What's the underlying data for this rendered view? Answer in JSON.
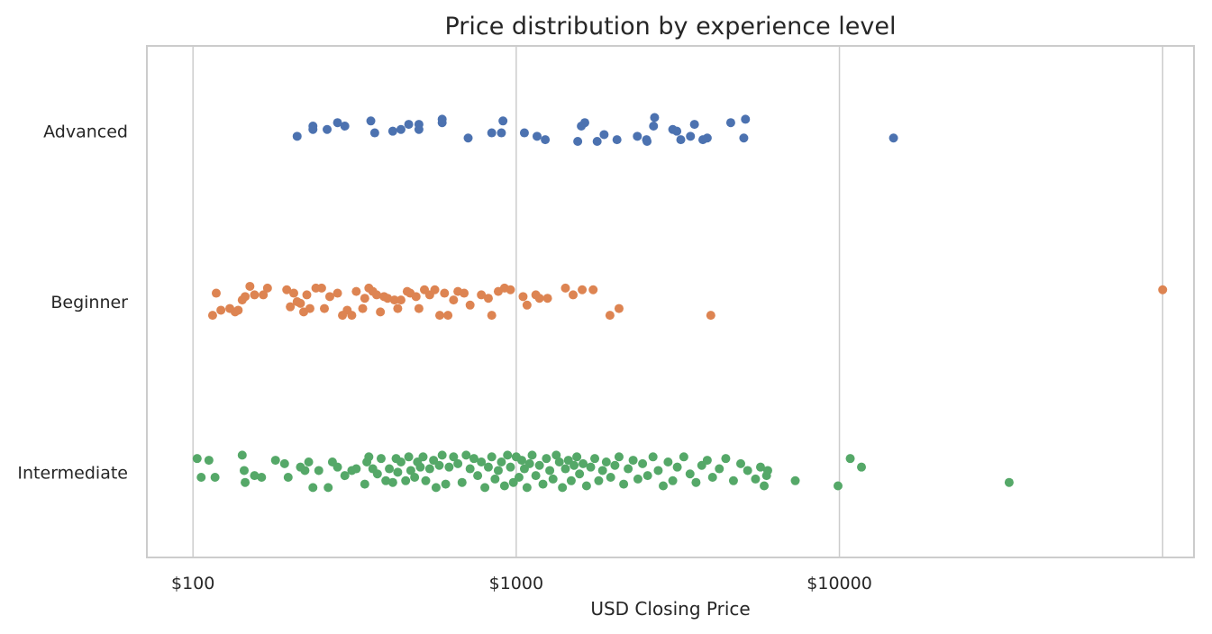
{
  "chart_data": {
    "type": "scatter",
    "title": "Price distribution by experience level",
    "xlabel": "USD Closing Price",
    "ylabel": "",
    "x_scale": "log",
    "xlim": [
      72,
      125000
    ],
    "x_ticks": [
      {
        "value": 100,
        "label": "$100"
      },
      {
        "value": 1000,
        "label": "$1000"
      },
      {
        "value": 10000,
        "label": "$10000"
      }
    ],
    "x_gridlines": [
      100,
      1000,
      10000,
      100000
    ],
    "categories": [
      "Advanced",
      "Beginner",
      "Intermediate"
    ],
    "grid": true,
    "legend": false,
    "series": [
      {
        "category": "Advanced",
        "color": "#4c72b0",
        "points": [
          [
            210,
            -0.03
          ],
          [
            235,
            0.03
          ],
          [
            235,
            0.01
          ],
          [
            260,
            0.01
          ],
          [
            280,
            0.05
          ],
          [
            295,
            0.03
          ],
          [
            355,
            0.06
          ],
          [
            365,
            -0.01
          ],
          [
            415,
            0
          ],
          [
            440,
            0.01
          ],
          [
            465,
            0.04
          ],
          [
            500,
            0.04
          ],
          [
            500,
            0.01
          ],
          [
            590,
            0.07
          ],
          [
            590,
            0.05
          ],
          [
            710,
            -0.04
          ],
          [
            840,
            -0.01
          ],
          [
            900,
            -0.01
          ],
          [
            910,
            0.06
          ],
          [
            1060,
            -0.01
          ],
          [
            1160,
            -0.03
          ],
          [
            1230,
            -0.05
          ],
          [
            1550,
            -0.06
          ],
          [
            1590,
            0.03
          ],
          [
            1630,
            0.05
          ],
          [
            1780,
            -0.06
          ],
          [
            1870,
            -0.02
          ],
          [
            2050,
            -0.05
          ],
          [
            2370,
            -0.03
          ],
          [
            2530,
            -0.05
          ],
          [
            2540,
            -0.06
          ],
          [
            2660,
            0.03
          ],
          [
            2680,
            0.08
          ],
          [
            3050,
            0.01
          ],
          [
            3140,
            0
          ],
          [
            3230,
            -0.05
          ],
          [
            3460,
            -0.03
          ],
          [
            3560,
            0.04
          ],
          [
            3780,
            -0.05
          ],
          [
            3900,
            -0.04
          ],
          [
            4610,
            0.05
          ],
          [
            5060,
            -0.04
          ],
          [
            5120,
            0.07
          ],
          [
            14700,
            -0.04
          ]
        ]
      },
      {
        "category": "Beginner",
        "color": "#dd8452",
        "points": [
          [
            115,
            -0.08
          ],
          [
            118,
            0.05
          ],
          [
            122,
            -0.05
          ],
          [
            130,
            -0.04
          ],
          [
            135,
            -0.06
          ],
          [
            138,
            -0.05
          ],
          [
            142,
            0.01
          ],
          [
            145,
            0.03
          ],
          [
            150,
            0.09
          ],
          [
            155,
            0.04
          ],
          [
            165,
            0.04
          ],
          [
            170,
            0.08
          ],
          [
            195,
            0.07
          ],
          [
            200,
            -0.03
          ],
          [
            205,
            0.05
          ],
          [
            210,
            0
          ],
          [
            215,
            -0.01
          ],
          [
            220,
            -0.06
          ],
          [
            225,
            0.04
          ],
          [
            230,
            -0.04
          ],
          [
            240,
            0.08
          ],
          [
            250,
            0.08
          ],
          [
            255,
            -0.04
          ],
          [
            265,
            0.03
          ],
          [
            280,
            0.05
          ],
          [
            290,
            -0.08
          ],
          [
            300,
            -0.05
          ],
          [
            310,
            -0.08
          ],
          [
            320,
            0.06
          ],
          [
            335,
            -0.04
          ],
          [
            340,
            0.02
          ],
          [
            350,
            0.08
          ],
          [
            360,
            0.06
          ],
          [
            370,
            0.04
          ],
          [
            380,
            -0.06
          ],
          [
            390,
            0.03
          ],
          [
            400,
            0.02
          ],
          [
            420,
            0.01
          ],
          [
            430,
            -0.04
          ],
          [
            440,
            0.01
          ],
          [
            460,
            0.06
          ],
          [
            470,
            0.05
          ],
          [
            490,
            0.03
          ],
          [
            500,
            -0.04
          ],
          [
            520,
            0.07
          ],
          [
            540,
            0.04
          ],
          [
            560,
            0.07
          ],
          [
            580,
            -0.08
          ],
          [
            600,
            0.05
          ],
          [
            615,
            -0.08
          ],
          [
            640,
            0.01
          ],
          [
            660,
            0.06
          ],
          [
            690,
            0.05
          ],
          [
            720,
            -0.02
          ],
          [
            780,
            0.04
          ],
          [
            820,
            0.02
          ],
          [
            840,
            -0.08
          ],
          [
            880,
            0.06
          ],
          [
            920,
            0.08
          ],
          [
            960,
            0.07
          ],
          [
            1050,
            0.03
          ],
          [
            1080,
            -0.02
          ],
          [
            1150,
            0.04
          ],
          [
            1180,
            0.02
          ],
          [
            1250,
            0.02
          ],
          [
            1420,
            0.08
          ],
          [
            1500,
            0.04
          ],
          [
            1600,
            0.07
          ],
          [
            1730,
            0.07
          ],
          [
            1950,
            -0.08
          ],
          [
            2080,
            -0.04
          ],
          [
            4000,
            -0.08
          ],
          [
            100000,
            0.07
          ]
        ]
      },
      {
        "category": "Intermediate",
        "color": "#55a868",
        "points": [
          [
            103,
            0.08
          ],
          [
            106,
            -0.03
          ],
          [
            112,
            0.07
          ],
          [
            117,
            -0.03
          ],
          [
            142,
            0.1
          ],
          [
            144,
            0.01
          ],
          [
            145,
            -0.06
          ],
          [
            155,
            -0.02
          ],
          [
            163,
            -0.03
          ],
          [
            180,
            0.07
          ],
          [
            192,
            0.05
          ],
          [
            197,
            -0.03
          ],
          [
            215,
            0.03
          ],
          [
            222,
            0.01
          ],
          [
            228,
            0.06
          ],
          [
            235,
            -0.09
          ],
          [
            245,
            0.01
          ],
          [
            262,
            -0.09
          ],
          [
            270,
            0.06
          ],
          [
            280,
            0.03
          ],
          [
            295,
            -0.02
          ],
          [
            310,
            0.01
          ],
          [
            320,
            0.02
          ],
          [
            340,
            -0.07
          ],
          [
            345,
            0.06
          ],
          [
            350,
            0.09
          ],
          [
            360,
            0.02
          ],
          [
            372,
            -0.01
          ],
          [
            382,
            0.08
          ],
          [
            395,
            -0.05
          ],
          [
            405,
            0.02
          ],
          [
            415,
            -0.06
          ],
          [
            425,
            0.08
          ],
          [
            430,
            0
          ],
          [
            440,
            0.06
          ],
          [
            455,
            -0.05
          ],
          [
            465,
            0.09
          ],
          [
            472,
            0.01
          ],
          [
            485,
            -0.03
          ],
          [
            495,
            0.06
          ],
          [
            505,
            0.03
          ],
          [
            515,
            0.09
          ],
          [
            525,
            -0.05
          ],
          [
            540,
            0.02
          ],
          [
            555,
            0.07
          ],
          [
            565,
            -0.09
          ],
          [
            578,
            0.04
          ],
          [
            590,
            0.1
          ],
          [
            605,
            -0.07
          ],
          [
            620,
            0.03
          ],
          [
            640,
            0.09
          ],
          [
            660,
            0.05
          ],
          [
            680,
            -0.06
          ],
          [
            700,
            0.1
          ],
          [
            720,
            0.02
          ],
          [
            740,
            0.08
          ],
          [
            760,
            -0.02
          ],
          [
            780,
            0.06
          ],
          [
            800,
            -0.09
          ],
          [
            820,
            0.03
          ],
          [
            840,
            0.09
          ],
          [
            860,
            -0.04
          ],
          [
            880,
            0.01
          ],
          [
            900,
            0.06
          ],
          [
            920,
            -0.08
          ],
          [
            940,
            0.1
          ],
          [
            960,
            0.03
          ],
          [
            980,
            -0.06
          ],
          [
            1000,
            0.09
          ],
          [
            1020,
            -0.03
          ],
          [
            1040,
            0.07
          ],
          [
            1060,
            0.02
          ],
          [
            1080,
            -0.09
          ],
          [
            1100,
            0.05
          ],
          [
            1120,
            0.1
          ],
          [
            1150,
            -0.02
          ],
          [
            1180,
            0.04
          ],
          [
            1210,
            -0.07
          ],
          [
            1240,
            0.08
          ],
          [
            1270,
            0.01
          ],
          [
            1300,
            -0.04
          ],
          [
            1330,
            0.1
          ],
          [
            1360,
            0.06
          ],
          [
            1390,
            -0.09
          ],
          [
            1420,
            0.02
          ],
          [
            1450,
            0.07
          ],
          [
            1480,
            -0.05
          ],
          [
            1510,
            0.04
          ],
          [
            1540,
            0.09
          ],
          [
            1570,
            -0.01
          ],
          [
            1610,
            0.05
          ],
          [
            1650,
            -0.08
          ],
          [
            1700,
            0.03
          ],
          [
            1750,
            0.08
          ],
          [
            1800,
            -0.05
          ],
          [
            1850,
            0.01
          ],
          [
            1900,
            0.06
          ],
          [
            1960,
            -0.03
          ],
          [
            2020,
            0.04
          ],
          [
            2080,
            0.09
          ],
          [
            2150,
            -0.07
          ],
          [
            2220,
            0.02
          ],
          [
            2300,
            0.07
          ],
          [
            2380,
            -0.04
          ],
          [
            2460,
            0.05
          ],
          [
            2550,
            -0.02
          ],
          [
            2650,
            0.09
          ],
          [
            2750,
            0.01
          ],
          [
            2850,
            -0.08
          ],
          [
            2950,
            0.06
          ],
          [
            3050,
            -0.05
          ],
          [
            3150,
            0.03
          ],
          [
            3300,
            0.09
          ],
          [
            3450,
            -0.01
          ],
          [
            3600,
            -0.06
          ],
          [
            3750,
            0.04
          ],
          [
            3900,
            0.07
          ],
          [
            4050,
            -0.03
          ],
          [
            4250,
            0.02
          ],
          [
            4450,
            0.08
          ],
          [
            4700,
            -0.05
          ],
          [
            4950,
            0.05
          ],
          [
            5200,
            0.01
          ],
          [
            5500,
            -0.04
          ],
          [
            5700,
            0.03
          ],
          [
            5850,
            -0.08
          ],
          [
            5950,
            -0.02
          ],
          [
            6000,
            0.01
          ],
          [
            7300,
            -0.05
          ],
          [
            9900,
            -0.08
          ],
          [
            10800,
            0.08
          ],
          [
            11700,
            0.03
          ],
          [
            33500,
            -0.06
          ]
        ]
      }
    ]
  }
}
